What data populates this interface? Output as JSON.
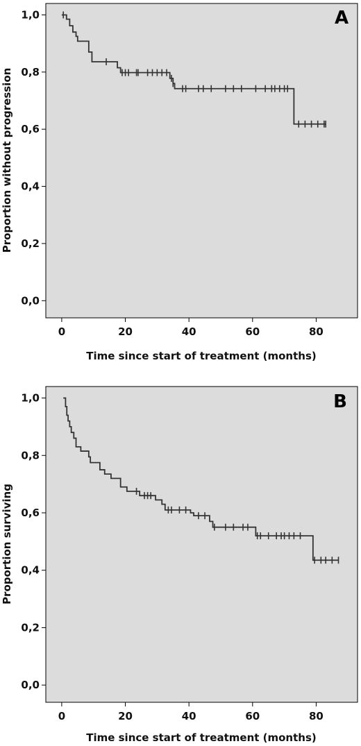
{
  "chart_data": [
    {
      "type": "line",
      "subtype": "kaplan-meier-step",
      "panel_label": "A",
      "xlabel": "Time since start of treatment (months)",
      "ylabel": "Proportion without progression",
      "xlim": [
        -5,
        93
      ],
      "ylim": [
        -0.06,
        1.04
      ],
      "xticks": [
        0,
        20,
        40,
        60,
        80
      ],
      "xtick_labels": [
        "0",
        "20",
        "40",
        "60",
        "80"
      ],
      "yticks": [
        0.0,
        0.2,
        0.4,
        0.6,
        0.8,
        1.0
      ],
      "ytick_labels": [
        "0,0",
        "0,2",
        "0,4",
        "0,6",
        "0,8",
        "1,0"
      ],
      "grid": false,
      "plot_background": "#dcdcdc",
      "line_color": "#333333",
      "series": [
        {
          "steps": [
            [
              0,
              1.0
            ],
            [
              1.5,
              0.985
            ],
            [
              2.5,
              0.962
            ],
            [
              3.5,
              0.94
            ],
            [
              4.5,
              0.925
            ],
            [
              5,
              0.908
            ],
            [
              8.5,
              0.87
            ],
            [
              9.5,
              0.836
            ],
            [
              17.5,
              0.815
            ],
            [
              18.5,
              0.798
            ],
            [
              34,
              0.778
            ],
            [
              35,
              0.76
            ],
            [
              35.5,
              0.742
            ],
            [
              73,
              0.618
            ]
          ],
          "end_x": 83,
          "censored": [
            [
              0.5,
              1.0
            ],
            [
              14,
              0.836
            ],
            [
              19,
              0.798
            ],
            [
              20,
              0.798
            ],
            [
              21,
              0.798
            ],
            [
              23.5,
              0.798
            ],
            [
              24,
              0.798
            ],
            [
              27,
              0.798
            ],
            [
              28.5,
              0.798
            ],
            [
              30,
              0.798
            ],
            [
              31.5,
              0.798
            ],
            [
              33,
              0.798
            ],
            [
              34.5,
              0.778
            ],
            [
              35,
              0.76
            ],
            [
              38,
              0.742
            ],
            [
              39,
              0.742
            ],
            [
              43,
              0.742
            ],
            [
              44.5,
              0.742
            ],
            [
              47,
              0.742
            ],
            [
              51.5,
              0.742
            ],
            [
              54,
              0.742
            ],
            [
              56.5,
              0.742
            ],
            [
              61,
              0.742
            ],
            [
              64,
              0.742
            ],
            [
              66,
              0.742
            ],
            [
              67,
              0.742
            ],
            [
              68.5,
              0.742
            ],
            [
              70,
              0.742
            ],
            [
              71,
              0.742
            ],
            [
              74.5,
              0.618
            ],
            [
              76.5,
              0.618
            ],
            [
              78.5,
              0.618
            ],
            [
              80.5,
              0.618
            ],
            [
              82.5,
              0.618
            ],
            [
              83,
              0.618
            ]
          ]
        }
      ]
    },
    {
      "type": "line",
      "subtype": "kaplan-meier-step",
      "panel_label": "B",
      "xlabel": "Time since start of treatment (months)",
      "ylabel": "Proportion surviving",
      "xlim": [
        -5,
        93
      ],
      "ylim": [
        -0.06,
        1.04
      ],
      "xticks": [
        0,
        20,
        40,
        60,
        80
      ],
      "xtick_labels": [
        "0",
        "20",
        "40",
        "60",
        "80"
      ],
      "yticks": [
        0.0,
        0.2,
        0.4,
        0.6,
        0.8,
        1.0
      ],
      "ytick_labels": [
        "0,0",
        "0,2",
        "0,4",
        "0,6",
        "0,8",
        "1,0"
      ],
      "grid": false,
      "plot_background": "#dcdcdc",
      "line_color": "#333333",
      "series": [
        {
          "steps": [
            [
              0.5,
              1.0
            ],
            [
              1.2,
              0.97
            ],
            [
              1.6,
              0.94
            ],
            [
              2,
              0.92
            ],
            [
              2.5,
              0.9
            ],
            [
              3,
              0.88
            ],
            [
              3.8,
              0.86
            ],
            [
              4.5,
              0.83
            ],
            [
              6,
              0.815
            ],
            [
              8.5,
              0.795
            ],
            [
              9,
              0.775
            ],
            [
              12,
              0.75
            ],
            [
              13.5,
              0.735
            ],
            [
              15.5,
              0.72
            ],
            [
              18.5,
              0.69
            ],
            [
              20.5,
              0.675
            ],
            [
              24.5,
              0.66
            ],
            [
              29.5,
              0.645
            ],
            [
              31.5,
              0.63
            ],
            [
              32.5,
              0.61
            ],
            [
              40.5,
              0.6
            ],
            [
              41.5,
              0.59
            ],
            [
              46.5,
              0.57
            ],
            [
              47.5,
              0.55
            ],
            [
              61,
              0.52
            ],
            [
              79,
              0.435
            ]
          ],
          "end_x": 87,
          "censored": [
            [
              23.5,
              0.675
            ],
            [
              26,
              0.66
            ],
            [
              27,
              0.66
            ],
            [
              28,
              0.66
            ],
            [
              33.5,
              0.61
            ],
            [
              34.5,
              0.61
            ],
            [
              37,
              0.61
            ],
            [
              39,
              0.61
            ],
            [
              43,
              0.59
            ],
            [
              45,
              0.59
            ],
            [
              48,
              0.55
            ],
            [
              51.5,
              0.55
            ],
            [
              54,
              0.55
            ],
            [
              57,
              0.55
            ],
            [
              58.5,
              0.55
            ],
            [
              61.5,
              0.52
            ],
            [
              62.5,
              0.52
            ],
            [
              65,
              0.52
            ],
            [
              67.5,
              0.52
            ],
            [
              69,
              0.52
            ],
            [
              70,
              0.52
            ],
            [
              71.5,
              0.52
            ],
            [
              73,
              0.52
            ],
            [
              75,
              0.52
            ],
            [
              79.5,
              0.435
            ],
            [
              81.5,
              0.435
            ],
            [
              83,
              0.435
            ],
            [
              85,
              0.435
            ],
            [
              87,
              0.435
            ]
          ]
        }
      ]
    }
  ]
}
